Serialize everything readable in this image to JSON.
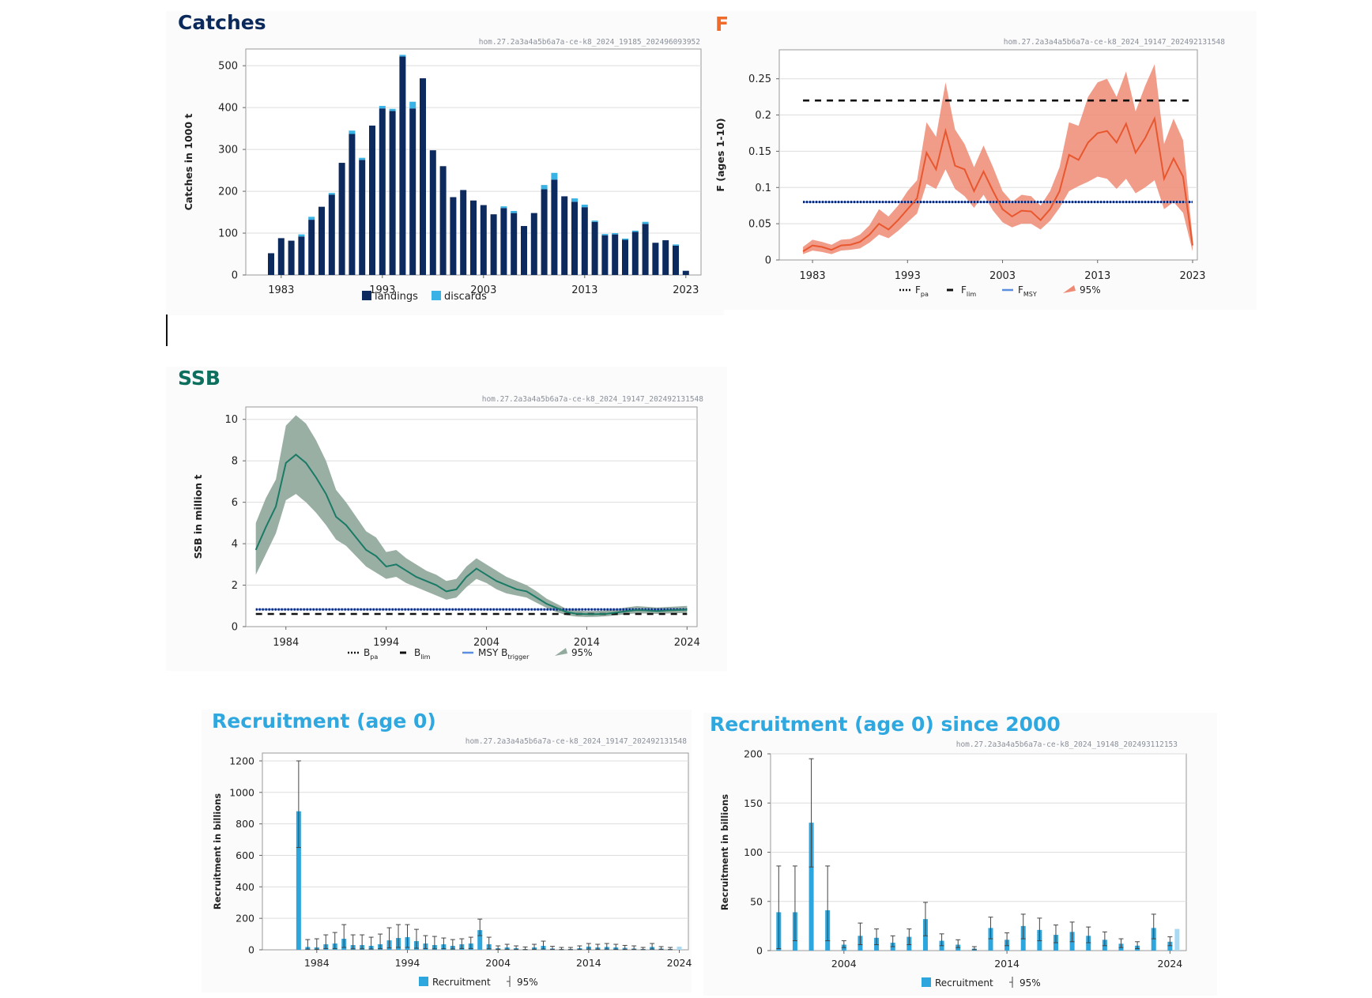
{
  "colors": {
    "catches_title": "#0b2a5b",
    "landings": "#0d2a5e",
    "discards": "#39b3e6",
    "f_title": "#f06a2a",
    "f_line": "#e8572e",
    "f_band": "#ee8a74",
    "ssb_title": "#0d6f5d",
    "ssb_line": "#1a7a65",
    "ssb_band": "#93ab9f",
    "rec_title": "#2fa7df",
    "rec_bar": "#2ca6dd",
    "rec_bar_light": "#a9daf3",
    "ref_black": "#111111",
    "ref_navy": "#0a1f6b"
  },
  "panels": {
    "catches": {
      "title": "Catches",
      "code": "hom.27.2a3a4a5b6a7a-ce-k8_2024_19185_202496093952"
    },
    "f": {
      "title": "F",
      "code": "hom.27.2a3a4a5b6a7a-ce-k8_2024_19147_202492131548"
    },
    "ssb": {
      "title": "SSB",
      "code": "hom.27.2a3a4a5b6a7a-ce-k8_2024_19147_202492131548"
    },
    "rec": {
      "title": "Recruitment (age 0)",
      "code": "hom.27.2a3a4a5b6a7a-ce-k8_2024_19147_202492131548"
    },
    "rec2000": {
      "title": "Recruitment (age 0) since 2000",
      "code": "hom.27.2a3a4a5b6a7a-ce-k8_2024_19148_202493112153"
    }
  },
  "chart_data": [
    {
      "id": "catches",
      "type": "bar",
      "stacked": true,
      "title": "Catches",
      "xlabel": "",
      "ylabel": "Catches in 1000 t",
      "xlim": [
        1979.5,
        2024.5
      ],
      "ylim": [
        0,
        540
      ],
      "xticks": [
        1983,
        1993,
        2003,
        2013,
        2023
      ],
      "yticks": [
        0,
        100,
        200,
        300,
        400,
        500
      ],
      "legend": [
        {
          "name": "landings",
          "marker": "square",
          "color_key": "landings"
        },
        {
          "name": "discards",
          "marker": "square",
          "color_key": "discards"
        }
      ],
      "categories": [
        1982,
        1983,
        1984,
        1985,
        1986,
        1987,
        1988,
        1989,
        1990,
        1991,
        1992,
        1993,
        1994,
        1995,
        1996,
        1997,
        1998,
        1999,
        2000,
        2001,
        2002,
        2003,
        2004,
        2005,
        2006,
        2007,
        2008,
        2009,
        2010,
        2011,
        2012,
        2013,
        2014,
        2015,
        2016,
        2017,
        2018,
        2019,
        2020,
        2021,
        2022,
        2023
      ],
      "series": [
        {
          "name": "landings",
          "values": [
            52,
            88,
            82,
            92,
            132,
            163,
            192,
            268,
            337,
            275,
            357,
            398,
            392,
            522,
            398,
            470,
            298,
            260,
            186,
            203,
            178,
            167,
            145,
            160,
            148,
            117,
            148,
            205,
            228,
            188,
            175,
            162,
            127,
            95,
            97,
            84,
            103,
            122,
            77,
            83,
            70,
            10
          ]
        },
        {
          "name": "discards",
          "values": [
            0,
            0,
            0,
            5,
            7,
            0,
            4,
            0,
            8,
            5,
            0,
            6,
            5,
            4,
            16,
            0,
            0,
            0,
            0,
            0,
            0,
            0,
            0,
            4,
            5,
            0,
            0,
            10,
            16,
            0,
            8,
            6,
            3,
            3,
            3,
            3,
            3,
            5,
            0,
            0,
            3,
            0
          ]
        }
      ]
    },
    {
      "id": "f",
      "type": "line",
      "title": "F",
      "xlabel": "",
      "ylabel": "F (ages 1-10)",
      "xlim": [
        1979.5,
        2023.5
      ],
      "ylim": [
        0,
        0.29
      ],
      "xticks": [
        1983,
        1993,
        2003,
        2013,
        2023
      ],
      "yticks": [
        0,
        0.05,
        0.1,
        0.15,
        0.2,
        0.25
      ],
      "ytick_labels": [
        "0",
        "0.05",
        "0.1",
        "0.15",
        "0.2",
        "0.25"
      ],
      "x": [
        1982,
        1983,
        1984,
        1985,
        1986,
        1987,
        1988,
        1989,
        1990,
        1991,
        1992,
        1993,
        1994,
        1995,
        1996,
        1997,
        1998,
        1999,
        2000,
        2001,
        2002,
        2003,
        2004,
        2005,
        2006,
        2007,
        2008,
        2009,
        2010,
        2011,
        2012,
        2013,
        2014,
        2015,
        2016,
        2017,
        2018,
        2019,
        2020,
        2021,
        2022,
        2023
      ],
      "series": [
        {
          "name": "F",
          "values": [
            0.012,
            0.02,
            0.018,
            0.014,
            0.02,
            0.021,
            0.025,
            0.035,
            0.05,
            0.042,
            0.055,
            0.07,
            0.085,
            0.148,
            0.125,
            0.178,
            0.13,
            0.125,
            0.095,
            0.122,
            0.095,
            0.07,
            0.06,
            0.068,
            0.067,
            0.055,
            0.07,
            0.095,
            0.145,
            0.138,
            0.162,
            0.175,
            0.178,
            0.162,
            0.188,
            0.148,
            0.168,
            0.195,
            0.112,
            0.14,
            0.115,
            0.02
          ]
        }
      ],
      "band": {
        "name": "95%",
        "lower": [
          0.008,
          0.013,
          0.011,
          0.008,
          0.013,
          0.014,
          0.016,
          0.024,
          0.035,
          0.03,
          0.04,
          0.052,
          0.064,
          0.105,
          0.098,
          0.125,
          0.098,
          0.088,
          0.072,
          0.09,
          0.068,
          0.052,
          0.045,
          0.05,
          0.05,
          0.042,
          0.054,
          0.072,
          0.095,
          0.102,
          0.108,
          0.115,
          0.112,
          0.098,
          0.112,
          0.092,
          0.1,
          0.11,
          0.07,
          0.08,
          0.065,
          0.012
        ],
        "upper": [
          0.018,
          0.028,
          0.025,
          0.021,
          0.028,
          0.029,
          0.035,
          0.048,
          0.07,
          0.06,
          0.075,
          0.095,
          0.11,
          0.19,
          0.17,
          0.245,
          0.18,
          0.16,
          0.128,
          0.158,
          0.128,
          0.095,
          0.08,
          0.09,
          0.088,
          0.075,
          0.095,
          0.128,
          0.19,
          0.185,
          0.225,
          0.245,
          0.25,
          0.225,
          0.26,
          0.205,
          0.24,
          0.27,
          0.16,
          0.195,
          0.165,
          0.03
        ]
      },
      "reference_lines": [
        {
          "name": "Fpa",
          "value": 0.08
        },
        {
          "name": "Flim",
          "value": 0.22
        },
        {
          "name": "FMSY",
          "value": 0.08
        }
      ],
      "legend": [
        {
          "name": "F",
          "sub": "pa"
        },
        {
          "name": "F",
          "sub": "lim"
        },
        {
          "name": "F",
          "sub": "MSY"
        },
        {
          "name": "95%",
          "sub": ""
        }
      ]
    },
    {
      "id": "ssb",
      "type": "line",
      "title": "SSB",
      "xlabel": "",
      "ylabel": "SSB in million t",
      "xlim": [
        1980,
        2025
      ],
      "ylim": [
        0,
        10.6
      ],
      "xticks": [
        1984,
        1994,
        2004,
        2014,
        2024
      ],
      "yticks": [
        0,
        2,
        4,
        6,
        8,
        10
      ],
      "x": [
        1981,
        1982,
        1983,
        1984,
        1985,
        1986,
        1987,
        1988,
        1989,
        1990,
        1991,
        1992,
        1993,
        1994,
        1995,
        1996,
        1997,
        1998,
        1999,
        2000,
        2001,
        2002,
        2003,
        2004,
        2005,
        2006,
        2007,
        2008,
        2009,
        2010,
        2011,
        2012,
        2013,
        2014,
        2015,
        2016,
        2017,
        2018,
        2019,
        2020,
        2021,
        2022,
        2023,
        2024
      ],
      "series": [
        {
          "name": "SSB",
          "values": [
            3.7,
            4.8,
            5.8,
            7.9,
            8.3,
            7.9,
            7.2,
            6.4,
            5.3,
            4.9,
            4.3,
            3.7,
            3.4,
            2.9,
            3.0,
            2.7,
            2.4,
            2.2,
            2.0,
            1.7,
            1.8,
            2.4,
            2.8,
            2.5,
            2.2,
            2.0,
            1.8,
            1.7,
            1.4,
            1.1,
            0.9,
            0.7,
            0.62,
            0.6,
            0.6,
            0.62,
            0.68,
            0.75,
            0.8,
            0.78,
            0.75,
            0.78,
            0.8,
            0.82
          ]
        }
      ],
      "band": {
        "name": "95%",
        "lower": [
          2.5,
          3.5,
          4.5,
          6.1,
          6.4,
          6.0,
          5.5,
          4.9,
          4.2,
          3.9,
          3.4,
          2.9,
          2.6,
          2.3,
          2.4,
          2.1,
          1.9,
          1.7,
          1.5,
          1.3,
          1.4,
          1.9,
          2.3,
          2.1,
          1.8,
          1.6,
          1.5,
          1.4,
          1.15,
          0.9,
          0.7,
          0.55,
          0.48,
          0.46,
          0.47,
          0.5,
          0.55,
          0.6,
          0.64,
          0.63,
          0.61,
          0.63,
          0.65,
          0.66
        ],
        "upper": [
          5.0,
          6.2,
          7.1,
          9.7,
          10.2,
          9.8,
          9.0,
          8.0,
          6.6,
          6.0,
          5.3,
          4.6,
          4.3,
          3.6,
          3.7,
          3.3,
          3.0,
          2.7,
          2.5,
          2.2,
          2.3,
          2.9,
          3.3,
          3.0,
          2.7,
          2.4,
          2.2,
          2.0,
          1.7,
          1.35,
          1.1,
          0.85,
          0.78,
          0.75,
          0.76,
          0.78,
          0.85,
          0.93,
          0.99,
          0.96,
          0.92,
          0.95,
          0.97,
          1.0
        ]
      },
      "reference_lines": [
        {
          "name": "Bpa",
          "value": 0.83
        },
        {
          "name": "Blim",
          "value": 0.61
        },
        {
          "name": "MSY Btrigger",
          "value": 0.83
        }
      ],
      "legend": [
        {
          "name": "B",
          "sub": "pa"
        },
        {
          "name": "B",
          "sub": "lim"
        },
        {
          "name": "MSY B",
          "sub": "trigger"
        },
        {
          "name": "95%",
          "sub": ""
        }
      ]
    },
    {
      "id": "rec",
      "type": "bar",
      "title": "Recruitment (age 0)",
      "xlabel": "",
      "ylabel": "Recruitment in billions",
      "xlim": [
        1978,
        2025
      ],
      "ylim": [
        0,
        1250
      ],
      "xticks": [
        1984,
        1994,
        2004,
        2014,
        2024
      ],
      "yticks": [
        0,
        200,
        400,
        600,
        800,
        1000,
        1200
      ],
      "categories": [
        1982,
        1983,
        1984,
        1985,
        1986,
        1987,
        1988,
        1989,
        1990,
        1991,
        1992,
        1993,
        1994,
        1995,
        1996,
        1997,
        1998,
        1999,
        2000,
        2001,
        2002,
        2003,
        2004,
        2005,
        2006,
        2007,
        2008,
        2009,
        2010,
        2011,
        2012,
        2013,
        2014,
        2015,
        2016,
        2017,
        2018,
        2019,
        2020,
        2021,
        2022,
        2023,
        2024
      ],
      "series": [
        {
          "name": "Recruitment",
          "values": [
            880,
            18,
            15,
            35,
            40,
            70,
            30,
            30,
            25,
            35,
            60,
            75,
            80,
            55,
            40,
            30,
            35,
            25,
            35,
            40,
            125,
            35,
            10,
            15,
            10,
            5,
            15,
            25,
            8,
            5,
            5,
            10,
            20,
            15,
            18,
            15,
            12,
            8,
            5,
            18,
            8,
            5,
            20
          ]
        }
      ],
      "error_low": [
        650,
        4,
        3,
        8,
        8,
        15,
        6,
        6,
        5,
        7,
        12,
        15,
        15,
        10,
        8,
        6,
        7,
        5,
        8,
        8,
        90,
        6,
        2,
        3,
        2,
        1,
        3,
        5,
        2,
        1,
        1,
        2,
        4,
        3,
        4,
        3,
        2,
        2,
        1,
        4,
        2,
        1,
        5
      ],
      "error_high": [
        1200,
        65,
        70,
        95,
        110,
        160,
        95,
        95,
        80,
        100,
        140,
        160,
        160,
        130,
        90,
        85,
        75,
        65,
        70,
        80,
        195,
        80,
        25,
        35,
        25,
        18,
        35,
        55,
        22,
        15,
        15,
        25,
        40,
        35,
        40,
        35,
        28,
        25,
        15,
        40,
        20,
        15,
        40
      ],
      "last_bar_light": true,
      "legend": [
        {
          "name": "Recruitment"
        },
        {
          "name": "95%"
        }
      ]
    },
    {
      "id": "rec2000",
      "type": "bar",
      "title": "Recruitment (age 0) since 2000",
      "xlabel": "",
      "ylabel": "Recruitment in billions",
      "xlim": [
        1999.5,
        2025
      ],
      "ylim": [
        0,
        200
      ],
      "xticks": [
        2004,
        2014,
        2024
      ],
      "yticks": [
        0,
        50,
        100,
        150,
        200
      ],
      "categories": [
        2000,
        2001,
        2002,
        2003,
        2004,
        2005,
        2006,
        2007,
        2008,
        2009,
        2010,
        2011,
        2012,
        2013,
        2014,
        2015,
        2016,
        2017,
        2018,
        2019,
        2020,
        2021,
        2022,
        2023,
        2024
      ],
      "series": [
        {
          "name": "Recruitment",
          "values": [
            39,
            39,
            130,
            41,
            6,
            15,
            13,
            8,
            14,
            32,
            10,
            6,
            2,
            23,
            11,
            25,
            21,
            16,
            19,
            15,
            11,
            7,
            5,
            23,
            9
          ]
        }
      ],
      "error_low": [
        2,
        10,
        85,
        10,
        3,
        6,
        6,
        4,
        6,
        15,
        5,
        3,
        1,
        12,
        5,
        12,
        10,
        8,
        9,
        8,
        5,
        3,
        2,
        12,
        5
      ],
      "error_high": [
        86,
        86,
        195,
        86,
        10,
        28,
        22,
        15,
        22,
        49,
        17,
        11,
        4,
        34,
        18,
        37,
        33,
        26,
        29,
        24,
        19,
        12,
        9,
        37,
        14
      ],
      "last_value_light": 22,
      "legend": [
        {
          "name": "Recruitment"
        },
        {
          "name": "95%"
        }
      ]
    }
  ]
}
